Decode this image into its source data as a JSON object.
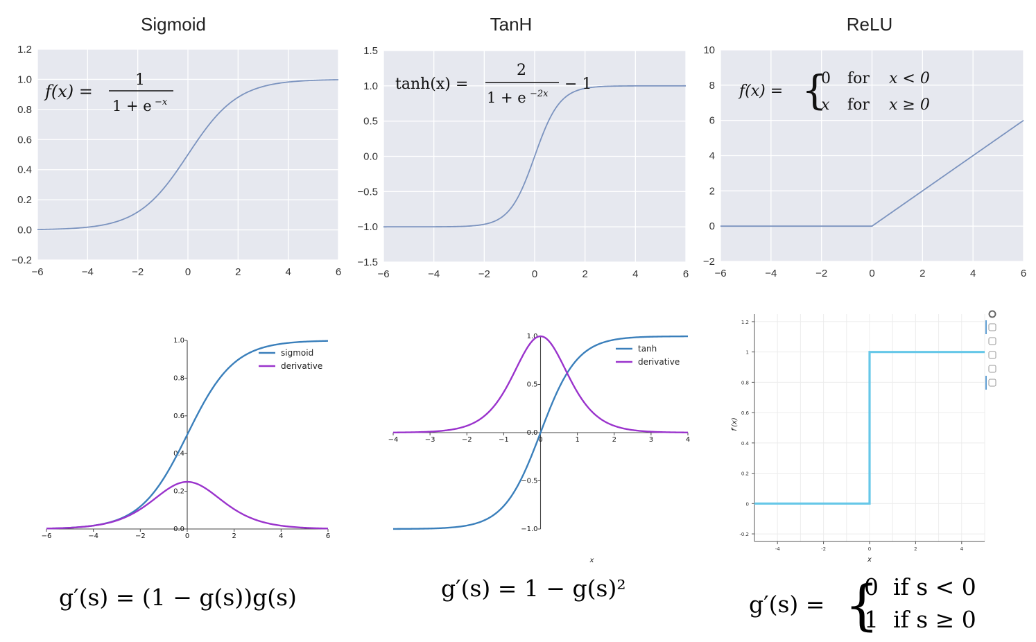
{
  "colors": {
    "panel_bg": "#e6e8ef",
    "grid_white": "#ffffff",
    "seaborn_line": "#7b93bf",
    "sigmoid_blue": "#3a7fbb",
    "derivative_purple": "#9a33cc",
    "relu_deriv_cyan": "#66c7e8",
    "toolbar_blue": "#2a7fc4"
  },
  "formulas": {
    "sigmoid": {
      "lhs": "f(x) =",
      "num": "1",
      "den": "1 + e",
      "den_exp": "−x"
    },
    "tanh": {
      "lhs": "tanh(x) =",
      "num": "2",
      "den": "1 + e",
      "den_exp": "−2x",
      "tail": "− 1"
    },
    "relu": {
      "lhs": "f(x) =",
      "row1_val": "0",
      "row1_for": "for",
      "row1_cond": "x < 0",
      "row2_val": "x",
      "row2_for": "for",
      "row2_cond": "x ≥ 0"
    },
    "sigmoid_deriv": "g′(s) = (1 − g(s))g(s)",
    "tanh_deriv": "g′(s) = 1 − g(s)²",
    "relu_deriv": {
      "lhs": "g′(s) =",
      "row1": "0  if s < 0",
      "row2": "1  if s ≥ 0"
    }
  },
  "toolbar_icons": [
    "bokeh-logo-icon",
    "pan-icon",
    "wheel-zoom-icon",
    "reset-icon",
    "save-icon",
    "hover-icon"
  ],
  "chart_data": [
    {
      "id": "sigmoid",
      "type": "line",
      "title": "Sigmoid",
      "function": "sigmoid",
      "xlim": [
        -6,
        6
      ],
      "ylim": [
        -0.2,
        1.2
      ],
      "xticks": [
        -6,
        -4,
        -2,
        0,
        2,
        4,
        6
      ],
      "yticks": [
        -0.2,
        0.0,
        0.2,
        0.4,
        0.6,
        0.8,
        1.0,
        1.2
      ],
      "xtick_labels": [
        "−6",
        "−4",
        "−2",
        "0",
        "2",
        "4",
        "6"
      ],
      "ytick_labels": [
        "−0.2",
        "0.0",
        "0.2",
        "0.4",
        "0.6",
        "0.8",
        "1.0",
        "1.2"
      ],
      "x": [
        -6,
        -5,
        -4,
        -3,
        -2,
        -1,
        0,
        1,
        2,
        3,
        4,
        5,
        6
      ],
      "y": [
        0.002,
        0.007,
        0.018,
        0.047,
        0.119,
        0.269,
        0.5,
        0.731,
        0.881,
        0.953,
        0.982,
        0.993,
        0.998
      ],
      "grid": true,
      "style": "seaborn"
    },
    {
      "id": "tanh",
      "type": "line",
      "title": "TanH",
      "function": "tanh",
      "xlim": [
        -6,
        6
      ],
      "ylim": [
        -1.5,
        1.5
      ],
      "xticks": [
        -6,
        -4,
        -2,
        0,
        2,
        4,
        6
      ],
      "yticks": [
        -1.5,
        -1.0,
        -0.5,
        0.0,
        0.5,
        1.0,
        1.5
      ],
      "xtick_labels": [
        "−6",
        "−4",
        "−2",
        "0",
        "2",
        "4",
        "6"
      ],
      "ytick_labels": [
        "−1.5",
        "−1.0",
        "−0.5",
        "0.0",
        "0.5",
        "1.0",
        "1.5"
      ],
      "x": [
        -6,
        -4,
        -2,
        -1,
        0,
        1,
        2,
        4,
        6
      ],
      "y": [
        -1.0,
        -0.999,
        -0.964,
        -0.762,
        0.0,
        0.762,
        0.964,
        0.999,
        1.0
      ],
      "grid": true,
      "style": "seaborn"
    },
    {
      "id": "relu",
      "type": "line",
      "title": "ReLU",
      "function": "relu",
      "xlim": [
        -6,
        6
      ],
      "ylim": [
        -2,
        10
      ],
      "xticks": [
        -6,
        -4,
        -2,
        0,
        2,
        4,
        6
      ],
      "yticks": [
        -2,
        0,
        2,
        4,
        6,
        8,
        10
      ],
      "xtick_labels": [
        "−6",
        "−4",
        "−2",
        "0",
        "2",
        "4",
        "6"
      ],
      "ytick_labels": [
        "−2",
        "0",
        "2",
        "4",
        "6",
        "8",
        "10"
      ],
      "x": [
        -6,
        0,
        6
      ],
      "y": [
        0,
        0,
        6
      ],
      "grid": true,
      "style": "seaborn"
    },
    {
      "id": "sigmoid_derivative",
      "type": "line",
      "xlim": [
        -6,
        6
      ],
      "ylim": [
        0,
        1.0
      ],
      "xticks": [
        -6,
        -4,
        -2,
        0,
        2,
        4,
        6
      ],
      "yticks": [
        0.0,
        0.2,
        0.4,
        0.6,
        0.8,
        1.0
      ],
      "xtick_labels": [
        "−6",
        "−4",
        "−2",
        "0",
        "2",
        "4",
        "6"
      ],
      "ytick_labels": [
        "0.0",
        "0.2",
        "0.4",
        "0.6",
        "0.8",
        "1.0"
      ],
      "legend": "top-right",
      "series": [
        {
          "name": "sigmoid",
          "function": "sigmoid",
          "x": [
            -6,
            -4,
            -2,
            0,
            2,
            4,
            6
          ],
          "y": [
            0.002,
            0.018,
            0.119,
            0.5,
            0.881,
            0.982,
            0.998
          ]
        },
        {
          "name": "derivative",
          "function": "sigmoid_derivative",
          "x": [
            -6,
            -4,
            -2,
            0,
            2,
            4,
            6
          ],
          "y": [
            0.002,
            0.018,
            0.105,
            0.25,
            0.105,
            0.018,
            0.002
          ]
        }
      ],
      "grid": false,
      "style": "spines-at-zero"
    },
    {
      "id": "tanh_derivative",
      "type": "line",
      "xlim": [
        -4,
        4
      ],
      "ylim": [
        -1.0,
        1.0
      ],
      "xticks": [
        -4,
        -3,
        -2,
        -1,
        0,
        1,
        2,
        3,
        4
      ],
      "yticks": [
        -1.0,
        -0.5,
        0.0,
        0.5,
        1.0
      ],
      "xtick_labels": [
        "−4",
        "−3",
        "−2",
        "−1",
        "0",
        "1",
        "2",
        "3",
        "4"
      ],
      "ytick_labels": [
        "−1.0",
        "−0.5",
        "0.0",
        "0.5",
        "1.0"
      ],
      "xlabel": "x",
      "legend": "top-right",
      "series": [
        {
          "name": "tanh",
          "function": "tanh",
          "x": [
            -4,
            -2,
            -1,
            0,
            1,
            2,
            4
          ],
          "y": [
            -0.999,
            -0.964,
            -0.762,
            0.0,
            0.762,
            0.964,
            0.999
          ]
        },
        {
          "name": "derivative",
          "function": "tanh_derivative",
          "x": [
            -4,
            -2,
            -1,
            0,
            1,
            2,
            4
          ],
          "y": [
            0.001,
            0.071,
            0.42,
            1.0,
            0.42,
            0.071,
            0.001
          ]
        }
      ],
      "grid": false,
      "style": "spines-at-zero"
    },
    {
      "id": "relu_derivative",
      "type": "line",
      "xlim": [
        -5,
        5
      ],
      "ylim": [
        -0.25,
        1.25
      ],
      "xticks": [
        -4,
        -2,
        0,
        2,
        4
      ],
      "yticks": [
        -0.2,
        0,
        0.2,
        0.4,
        0.6,
        0.8,
        1,
        1.2
      ],
      "xtick_labels": [
        "-4",
        "-2",
        "0",
        "2",
        "4"
      ],
      "ytick_labels": [
        "-0.2",
        "0",
        "0.2",
        "0.4",
        "0.6",
        "0.8",
        "1",
        "1.2"
      ],
      "xlabel": "x",
      "ylabel": "f′(x)",
      "x": [
        -5,
        0,
        0,
        5
      ],
      "y": [
        0,
        0,
        1,
        1
      ],
      "grid": true,
      "style": "bokeh"
    }
  ]
}
